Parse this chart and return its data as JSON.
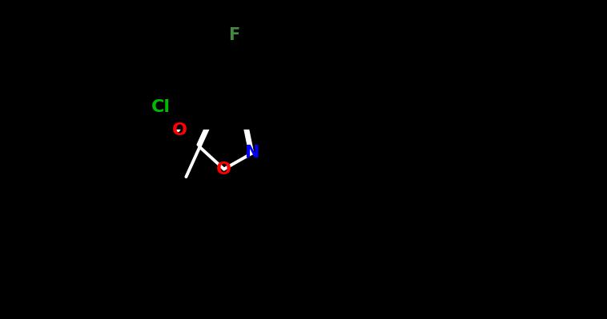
{
  "background_color": "#000000",
  "atom_colors": {
    "N": "#0000ff",
    "O_isoxazole": "#ff0000",
    "O_carbonyl": "#ff0000",
    "Cl": "#00bb00",
    "F": "#448844"
  },
  "bond_color": "#ffffff",
  "bond_width": 2.8,
  "figsize": [
    7.58,
    3.99
  ],
  "dpi": 100
}
